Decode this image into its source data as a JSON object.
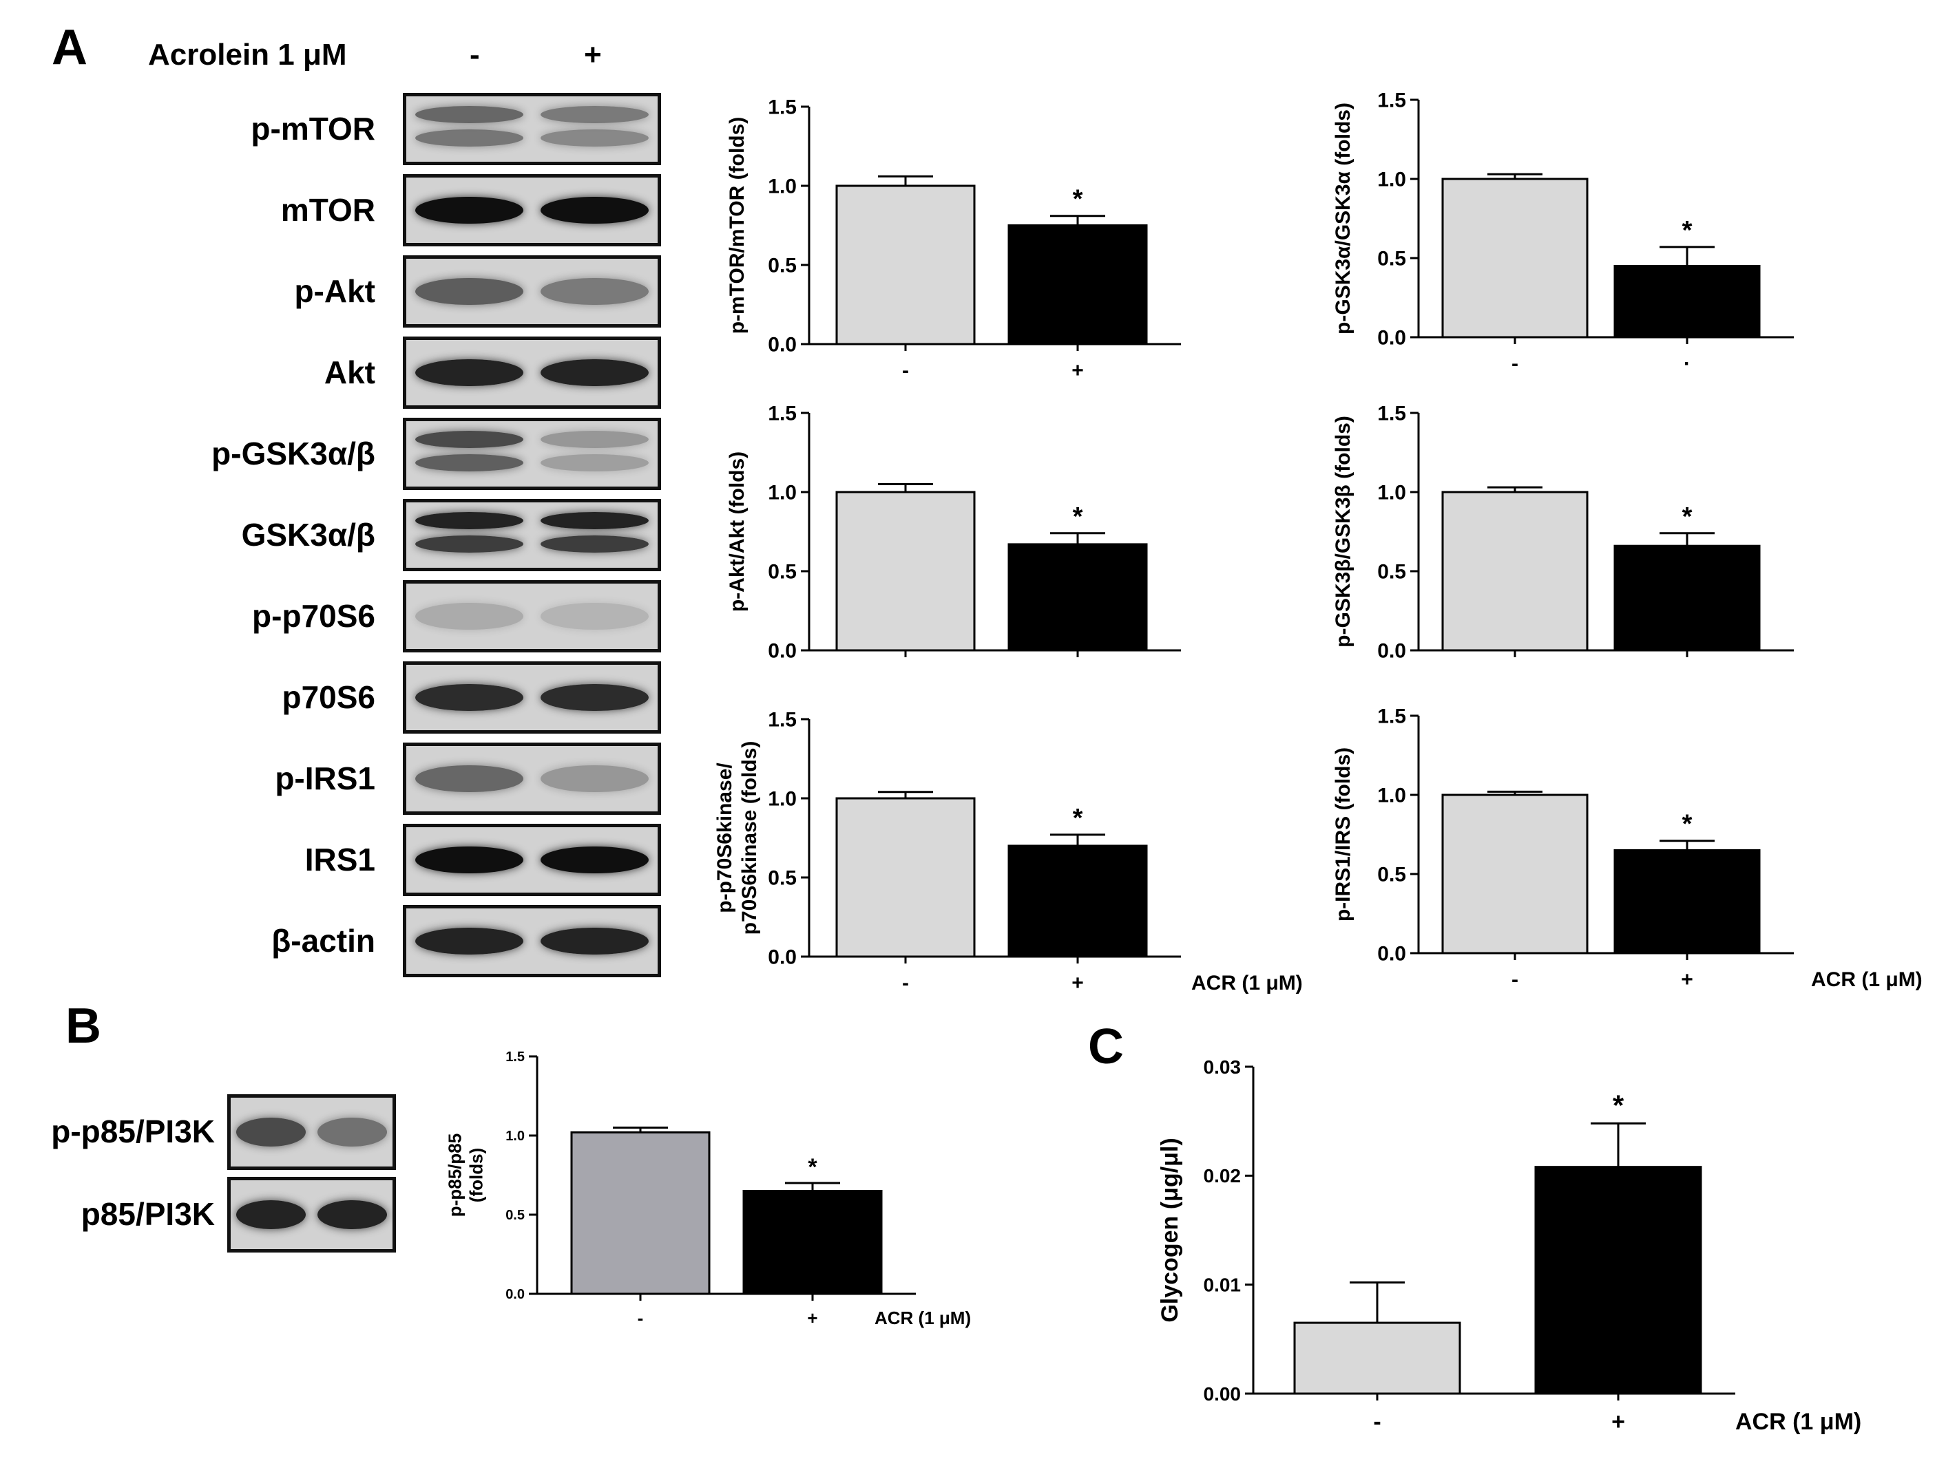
{
  "panels": {
    "a": "A",
    "b": "B",
    "c": "C"
  },
  "blot_a": {
    "treatment_label": "Acrolein 1 μM",
    "lane_minus": "-",
    "lane_plus": "+",
    "rows": [
      {
        "label": "p-mTOR",
        "bands": [
          0.55,
          0.45
        ],
        "double": true
      },
      {
        "label": "mTOR",
        "bands": [
          1.0,
          1.0
        ],
        "double": false
      },
      {
        "label": "p-Akt",
        "bands": [
          0.6,
          0.45
        ],
        "double": false
      },
      {
        "label": "Akt",
        "bands": [
          0.9,
          0.9
        ],
        "double": false
      },
      {
        "label": "p-GSK3α/β",
        "bands": [
          0.7,
          0.3
        ],
        "double": true
      },
      {
        "label": "GSK3α/β",
        "bands": [
          0.9,
          0.9
        ],
        "double": true
      },
      {
        "label": "p-p70S6",
        "bands": [
          0.2,
          0.15
        ],
        "double": false
      },
      {
        "label": "p70S6",
        "bands": [
          0.85,
          0.85
        ],
        "double": false
      },
      {
        "label": "p-IRS1",
        "bands": [
          0.55,
          0.3
        ],
        "double": false
      },
      {
        "label": "IRS1",
        "bands": [
          1.0,
          1.0
        ],
        "double": false
      },
      {
        "label": "β-actin",
        "bands": [
          0.9,
          0.9
        ],
        "double": false
      }
    ]
  },
  "blot_b": {
    "rows": [
      {
        "label": "p-p85/PI3K",
        "bands": [
          0.7,
          0.5
        ],
        "double": false
      },
      {
        "label": "p85/PI3K",
        "bands": [
          0.9,
          0.9
        ],
        "double": false
      }
    ]
  },
  "chart_data": [
    {
      "type": "bar",
      "ylabel": "p-mTOR/mTOR (folds)",
      "categories": [
        "-",
        "+"
      ],
      "values": [
        1.0,
        0.75
      ],
      "errors": [
        0.06,
        0.06
      ],
      "ylim": [
        0,
        1.5
      ],
      "yticks": [
        "0.0",
        "0.5",
        "1.0",
        "1.5"
      ],
      "sig": [
        "",
        "*"
      ],
      "treatment_label": "",
      "colors": [
        "#d9d9d9",
        "#000000"
      ]
    },
    {
      "type": "bar",
      "ylabel": "p-GSK3α/GSK3α (folds)",
      "categories": [
        "-",
        "·"
      ],
      "values": [
        1.0,
        0.45
      ],
      "errors": [
        0.03,
        0.12
      ],
      "ylim": [
        0,
        1.5
      ],
      "yticks": [
        "0.0",
        "0.5",
        "1.0",
        "1.5"
      ],
      "sig": [
        "",
        "*"
      ],
      "treatment_label": "",
      "colors": [
        "#d9d9d9",
        "#000000"
      ]
    },
    {
      "type": "bar",
      "ylabel": "p-Akt/Akt (folds)",
      "categories": [
        "",
        ""
      ],
      "values": [
        1.0,
        0.67
      ],
      "errors": [
        0.05,
        0.07
      ],
      "ylim": [
        0,
        1.5
      ],
      "yticks": [
        "0.0",
        "0.5",
        "1.0",
        "1.5"
      ],
      "sig": [
        "",
        "*"
      ],
      "treatment_label": "",
      "colors": [
        "#d9d9d9",
        "#000000"
      ]
    },
    {
      "type": "bar",
      "ylabel": "p-GSK3β/GSK3β (folds)",
      "categories": [
        "",
        ""
      ],
      "values": [
        1.0,
        0.66
      ],
      "errors": [
        0.03,
        0.08
      ],
      "ylim": [
        0,
        1.5
      ],
      "yticks": [
        "0.0",
        "0.5",
        "1.0",
        "1.5"
      ],
      "sig": [
        "",
        "*"
      ],
      "treatment_label": "",
      "colors": [
        "#d9d9d9",
        "#000000"
      ]
    },
    {
      "type": "bar",
      "ylabel": "p-p70S6kinase/ p70S6kinase (folds)",
      "categories": [
        "-",
        "+"
      ],
      "values": [
        1.0,
        0.7
      ],
      "errors": [
        0.04,
        0.07
      ],
      "ylim": [
        0,
        1.5
      ],
      "yticks": [
        "0.0",
        "0.5",
        "1.0",
        "1.5"
      ],
      "sig": [
        "",
        "*"
      ],
      "treatment_label": "ACR (1 μM)",
      "colors": [
        "#d9d9d9",
        "#000000"
      ]
    },
    {
      "type": "bar",
      "ylabel": "p-IRS1/IRS (folds)",
      "categories": [
        "-",
        "+"
      ],
      "values": [
        1.0,
        0.65
      ],
      "errors": [
        0.02,
        0.06
      ],
      "ylim": [
        0,
        1.5
      ],
      "yticks": [
        "0.0",
        "0.5",
        "1.0",
        "1.5"
      ],
      "sig": [
        "",
        "*"
      ],
      "treatment_label": "ACR (1 μM)",
      "colors": [
        "#d9d9d9",
        "#000000"
      ]
    },
    {
      "type": "bar",
      "ylabel": "p-p85/p85 (folds)",
      "categories": [
        "-",
        "+"
      ],
      "values": [
        1.02,
        0.65
      ],
      "errors": [
        0.03,
        0.05
      ],
      "ylim": [
        0,
        1.5
      ],
      "yticks": [
        "0.0",
        "0.5",
        "1.0",
        "1.5"
      ],
      "sig": [
        "",
        "*"
      ],
      "treatment_label": "ACR (1 μM)",
      "colors": [
        "#a6a6ad",
        "#000000"
      ]
    },
    {
      "type": "bar",
      "ylabel": "Glycogen (μg/μl)",
      "categories": [
        "-",
        "+"
      ],
      "values": [
        0.0065,
        0.0208
      ],
      "errors": [
        0.0037,
        0.004
      ],
      "ylim": [
        0,
        0.03
      ],
      "yticks": [
        "0.00",
        "0.01",
        "0.02",
        "0.03"
      ],
      "sig": [
        "",
        "*"
      ],
      "treatment_label": "ACR (1 μM)",
      "colors": [
        "#d9d9d9",
        "#000000"
      ]
    }
  ]
}
